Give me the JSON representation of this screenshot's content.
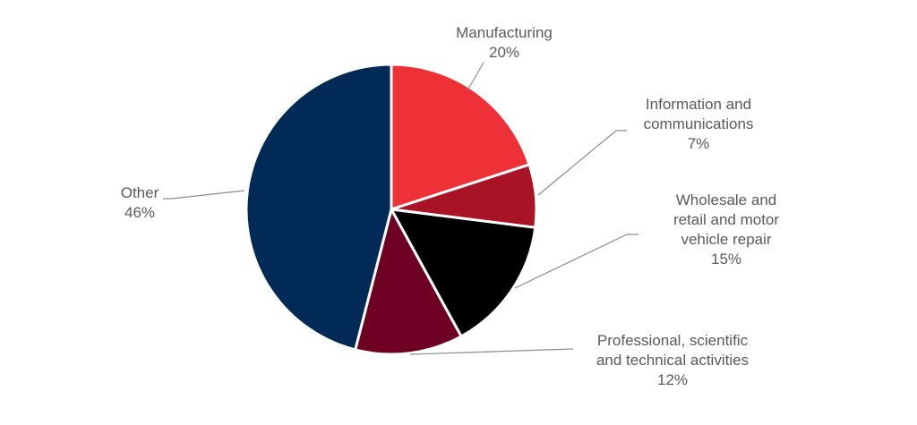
{
  "chart_data": {
    "type": "pie",
    "title": "",
    "start": "top, clockwise",
    "slices": [
      {
        "name": "Manufacturing",
        "value": 20,
        "label_lines": [
          "Manufacturing",
          "20%"
        ],
        "color": "#EE3137"
      },
      {
        "name": "Information and communications",
        "value": 7,
        "label_lines": [
          "Information and",
          "communications",
          "7%"
        ],
        "color": "#A81426"
      },
      {
        "name": "Wholesale and retail and motor vehicle repair",
        "value": 15,
        "label_lines": [
          "Wholesale and",
          "retail and motor",
          "vehicle repair",
          "15%"
        ],
        "color": "#000000"
      },
      {
        "name": "Professional, scientific and technical activities",
        "value": 12,
        "label_lines": [
          "Professional, scientific",
          "and technical activities",
          "12%"
        ],
        "color": "#6E0024"
      },
      {
        "name": "Other",
        "value": 46,
        "label_lines": [
          "Other",
          "46%"
        ],
        "color": "#012A57"
      }
    ]
  }
}
